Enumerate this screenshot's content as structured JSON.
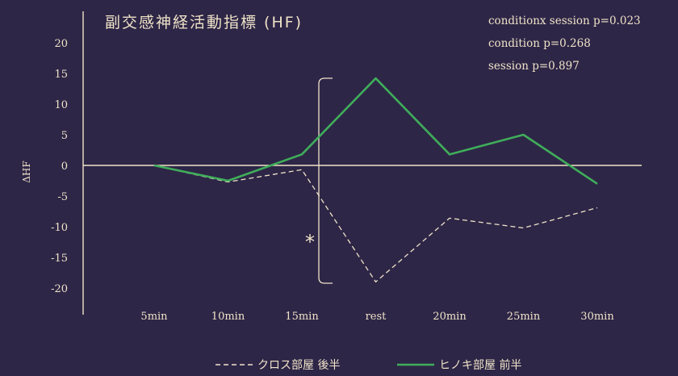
{
  "chart_data": {
    "type": "line",
    "title": "副交感神経活動指標 (HF)",
    "ylabel": "ΔHF",
    "xlabel": "",
    "categories": [
      "5min",
      "10min",
      "15min",
      "rest",
      "20min",
      "25min",
      "30min"
    ],
    "ylim": [
      -20,
      20
    ],
    "yticks": [
      20,
      15,
      10,
      5,
      0,
      -5,
      -10,
      -15,
      -20
    ],
    "series": [
      {
        "name": "クロス部屋 後半",
        "style": "dashed",
        "color": "#efe3c8",
        "values": [
          0,
          -2.7,
          -0.7,
          -19,
          -8.6,
          -10.2,
          -6.9
        ]
      },
      {
        "name": "ヒノキ部屋 前半",
        "style": "solid",
        "color": "#3fae5a",
        "values": [
          0,
          -2.5,
          1.8,
          14.2,
          1.8,
          5.0,
          -3.0
        ]
      }
    ],
    "stats": [
      "conditionx session p=0.023",
      "condition p=0.268",
      "session p=0.897"
    ],
    "annotation": "*",
    "legend_position": "bottom"
  }
}
